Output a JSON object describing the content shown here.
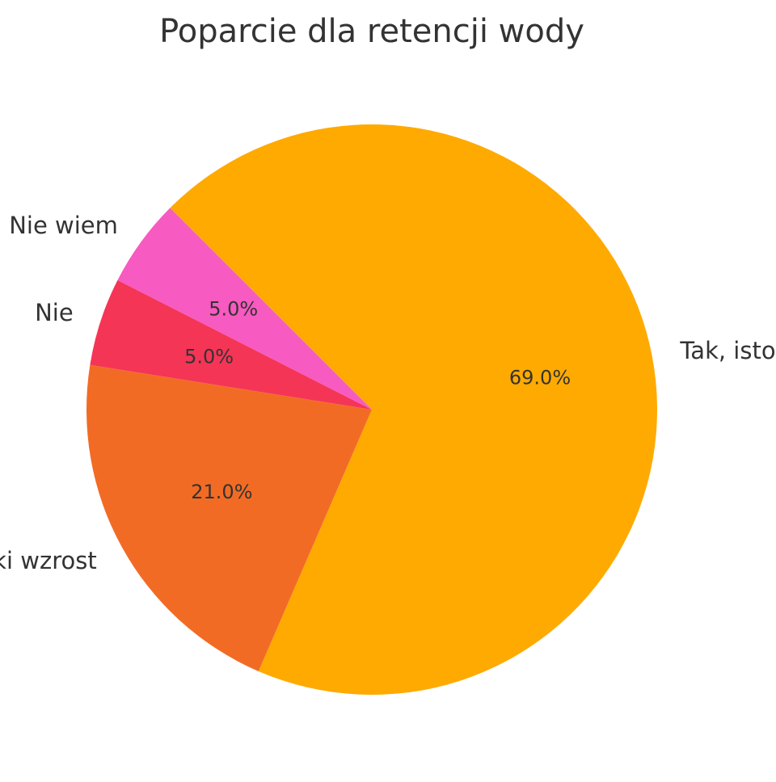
{
  "chart_data": {
    "type": "pie",
    "title": "Poparcie dla retencji wody",
    "categories": [
      "Tak, istotne",
      "Tak, niewielki wzrost",
      "Nie",
      "Nie wiem"
    ],
    "values": [
      69.0,
      21.0,
      5.0,
      5.0
    ],
    "percent_labels": [
      "69.0%",
      "21.0%",
      "5.0%",
      "5.0%"
    ],
    "colors": [
      "#FFAA00",
      "#F26B24",
      "#F53556",
      "#F75AC0"
    ],
    "start_angle_deg": 135,
    "direction": "clockwise",
    "legend": "none"
  }
}
